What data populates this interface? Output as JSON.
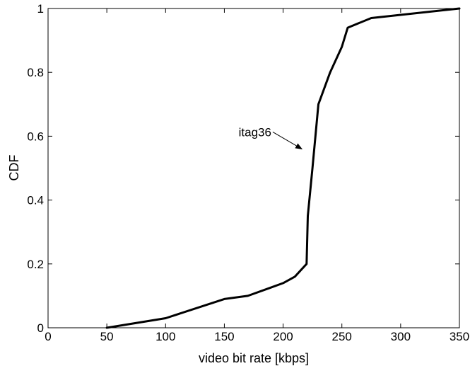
{
  "chart_data": {
    "type": "line",
    "xlabel": "video bit rate [kbps]",
    "ylabel": "CDF",
    "xlim": [
      0,
      350
    ],
    "ylim": [
      0,
      1
    ],
    "xticks": [
      0,
      50,
      100,
      150,
      200,
      250,
      300,
      350
    ],
    "xtick_labels": [
      "0",
      "50",
      "100",
      "150",
      "200",
      "250",
      "300",
      "350"
    ],
    "yticks": [
      0,
      0.2,
      0.4,
      0.6,
      0.8,
      1
    ],
    "ytick_labels": [
      "0",
      "0.2",
      "0.4",
      "0.6",
      "0.8",
      "1"
    ],
    "grid": false,
    "series": [
      {
        "x": [
          50,
          100,
          150,
          170,
          200,
          210,
          220,
          221,
          225,
          230,
          240,
          250,
          255,
          275,
          350
        ],
        "y": [
          0,
          0.03,
          0.09,
          0.1,
          0.14,
          0.16,
          0.2,
          0.35,
          0.5,
          0.7,
          0.8,
          0.88,
          0.94,
          0.97,
          1.0
        ],
        "color": "#000000"
      }
    ],
    "annotations": [
      {
        "text": "itag36",
        "text_at": [
          190,
          0.6
        ],
        "arrow_to": [
          216,
          0.56
        ]
      }
    ]
  }
}
